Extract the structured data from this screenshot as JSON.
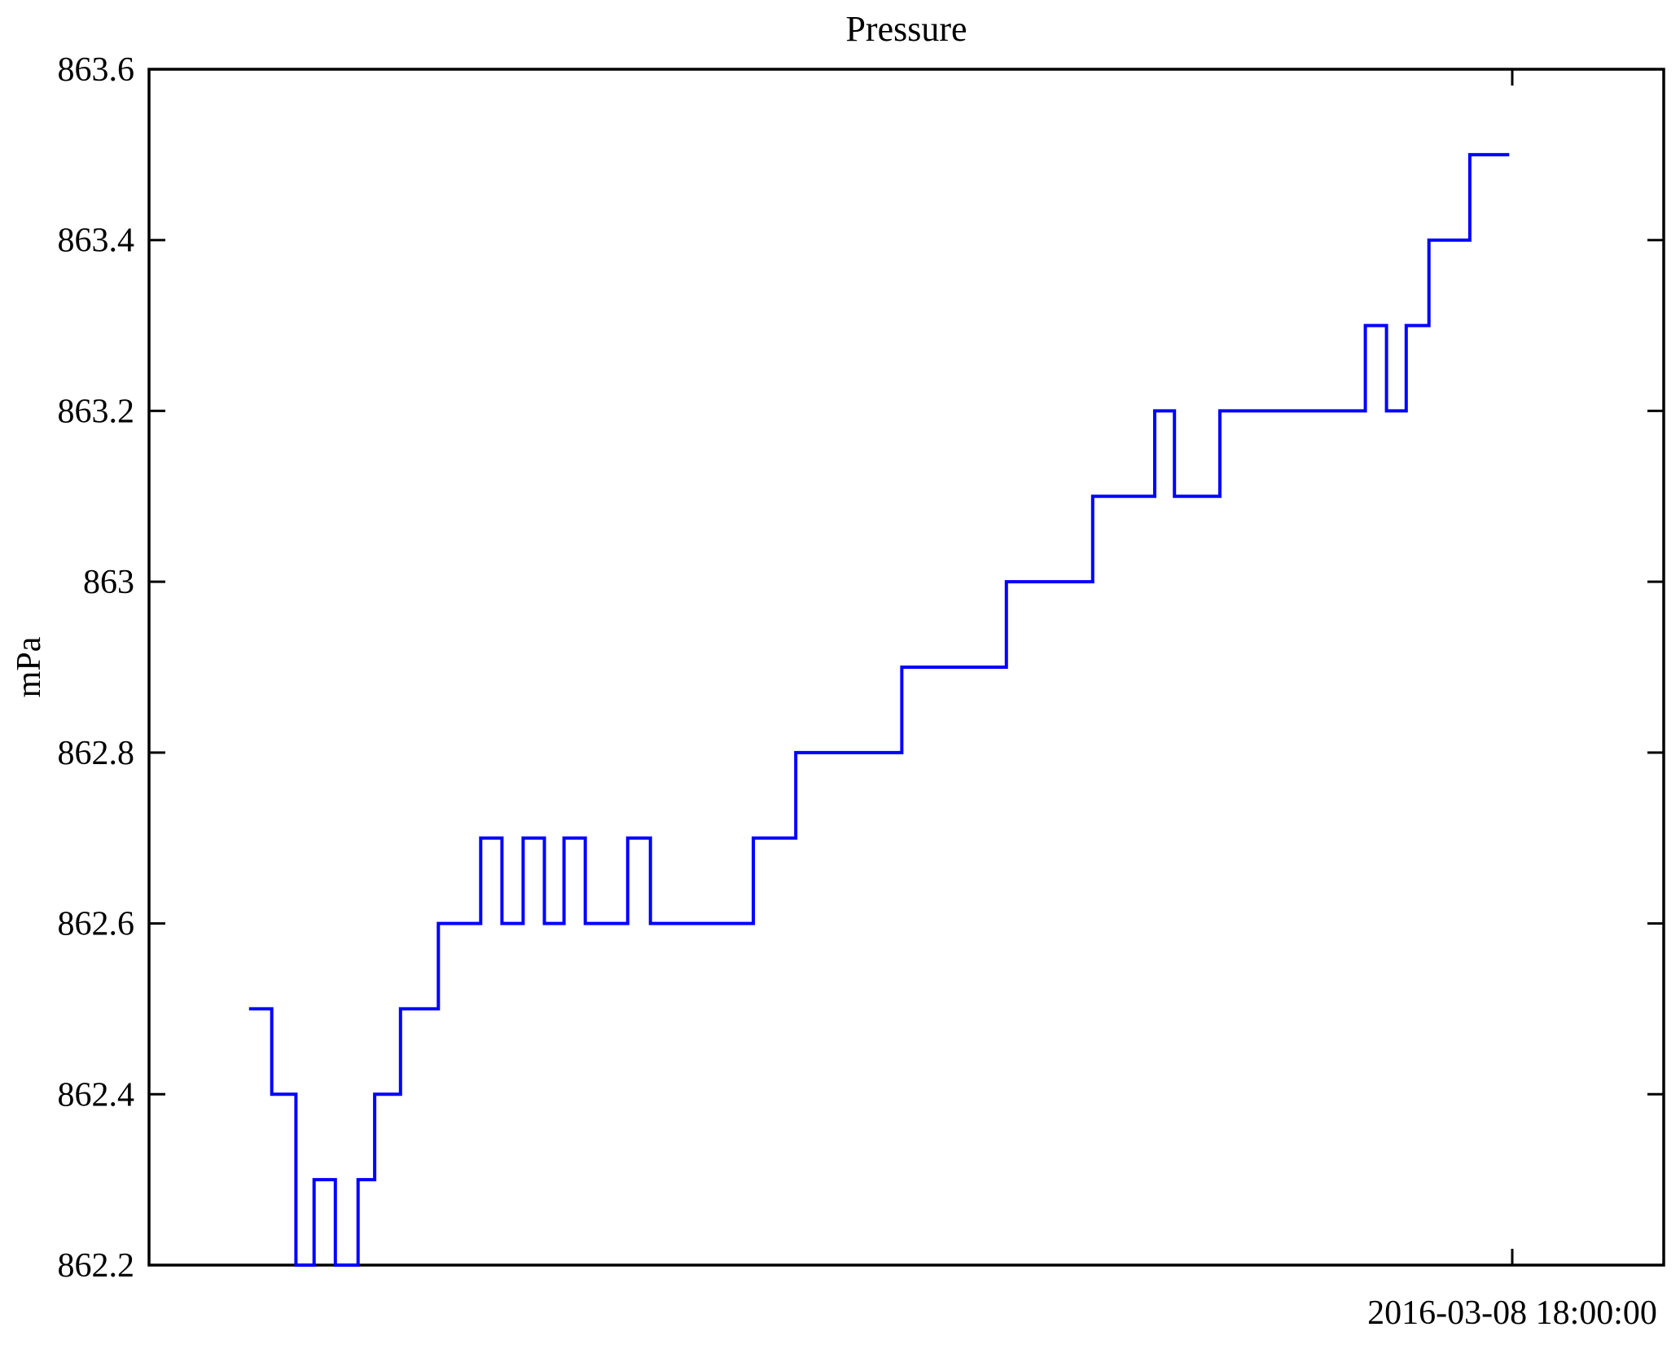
{
  "chart_data": {
    "type": "line",
    "subtype": "step-post",
    "title": "Pressure",
    "ylabel": "mPa",
    "xlabel": "",
    "line_color": "#0000ff",
    "axis_color": "#000000",
    "background_color": "#ffffff",
    "grid": false,
    "legend": null,
    "ylim": [
      862.2,
      863.6
    ],
    "y_ticks": [
      {
        "value": 863.6,
        "label": "863.6"
      },
      {
        "value": 863.4,
        "label": "863.4"
      },
      {
        "value": 863.2,
        "label": "863.2"
      },
      {
        "value": 863.0,
        "label": "863"
      },
      {
        "value": 862.8,
        "label": "862.8"
      },
      {
        "value": 862.6,
        "label": "862.6"
      },
      {
        "value": 862.4,
        "label": "862.4"
      },
      {
        "value": 862.2,
        "label": "862.2"
      }
    ],
    "x_ticks": [
      {
        "frac": 0.9,
        "label": "2016-03-08 18:00:00"
      }
    ],
    "steps": [
      {
        "x0": 0.066,
        "x1": 0.081,
        "y": 862.5
      },
      {
        "x0": 0.081,
        "x1": 0.097,
        "y": 862.4
      },
      {
        "x0": 0.097,
        "x1": 0.109,
        "y": 862.2
      },
      {
        "x0": 0.109,
        "x1": 0.123,
        "y": 862.3
      },
      {
        "x0": 0.123,
        "x1": 0.138,
        "y": 862.2
      },
      {
        "x0": 0.138,
        "x1": 0.149,
        "y": 862.3
      },
      {
        "x0": 0.149,
        "x1": 0.166,
        "y": 862.4
      },
      {
        "x0": 0.166,
        "x1": 0.191,
        "y": 862.5
      },
      {
        "x0": 0.191,
        "x1": 0.219,
        "y": 862.6
      },
      {
        "x0": 0.219,
        "x1": 0.233,
        "y": 862.7
      },
      {
        "x0": 0.233,
        "x1": 0.247,
        "y": 862.6
      },
      {
        "x0": 0.247,
        "x1": 0.261,
        "y": 862.7
      },
      {
        "x0": 0.261,
        "x1": 0.274,
        "y": 862.6
      },
      {
        "x0": 0.274,
        "x1": 0.288,
        "y": 862.7
      },
      {
        "x0": 0.288,
        "x1": 0.316,
        "y": 862.6
      },
      {
        "x0": 0.316,
        "x1": 0.331,
        "y": 862.7
      },
      {
        "x0": 0.331,
        "x1": 0.399,
        "y": 862.6
      },
      {
        "x0": 0.399,
        "x1": 0.427,
        "y": 862.7
      },
      {
        "x0": 0.427,
        "x1": 0.497,
        "y": 862.8
      },
      {
        "x0": 0.497,
        "x1": 0.566,
        "y": 862.9
      },
      {
        "x0": 0.566,
        "x1": 0.623,
        "y": 863.0
      },
      {
        "x0": 0.623,
        "x1": 0.664,
        "y": 863.1
      },
      {
        "x0": 0.664,
        "x1": 0.677,
        "y": 863.2
      },
      {
        "x0": 0.677,
        "x1": 0.707,
        "y": 863.1
      },
      {
        "x0": 0.707,
        "x1": 0.803,
        "y": 863.2
      },
      {
        "x0": 0.803,
        "x1": 0.817,
        "y": 863.3
      },
      {
        "x0": 0.817,
        "x1": 0.83,
        "y": 863.2
      },
      {
        "x0": 0.83,
        "x1": 0.845,
        "y": 863.3
      },
      {
        "x0": 0.845,
        "x1": 0.872,
        "y": 863.4
      },
      {
        "x0": 0.872,
        "x1": 0.898,
        "y": 863.5
      }
    ]
  }
}
